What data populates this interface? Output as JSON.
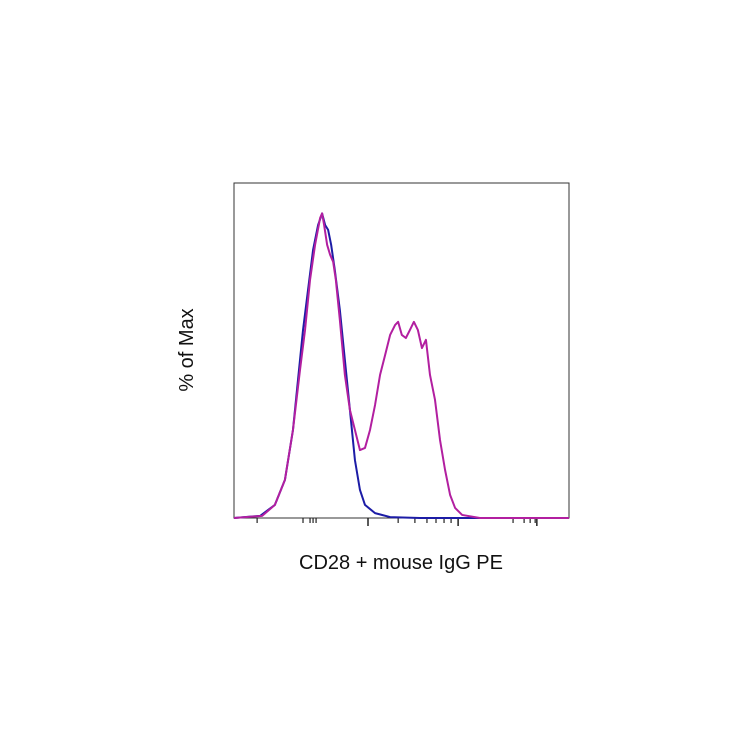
{
  "chart_data": {
    "type": "line",
    "x_label": "CD28 + mouse IgG PE",
    "y_label": "% of Max",
    "xlim": [
      0,
      100
    ],
    "ylim": [
      0,
      110
    ],
    "xticks": [
      40,
      66.9,
      90.4
    ],
    "xminorticks": [
      6.9,
      20.6,
      22.7,
      23.6,
      24.5,
      49,
      54,
      57.6,
      60.3,
      62.7,
      64.8,
      83.3,
      86.6,
      88.4,
      89.9
    ],
    "series": [
      {
        "color": "#1c1ca6",
        "x": [
          0,
          7.8,
          12.2,
          15.2,
          17.6,
          19.7,
          20.6,
          22.1,
          23.6,
          25.1,
          26.3,
          27.2,
          28.1,
          29.0,
          30.1,
          31.6,
          33.1,
          34.6,
          36.1,
          37.6,
          39.1,
          42.1,
          46.6,
          55.5,
          100
        ],
        "values": [
          0,
          0.7,
          4.3,
          12.5,
          28.9,
          51.9,
          61.7,
          74.9,
          88.0,
          96.2,
          100,
          96.2,
          94.6,
          89.7,
          81.4,
          68.3,
          51.9,
          35.5,
          19.0,
          9.2,
          4.3,
          1.6,
          0.3,
          0,
          0
        ]
      },
      {
        "color": "#b21fa0",
        "x": [
          0,
          8.4,
          12.2,
          15.2,
          17.6,
          19.7,
          21.2,
          22.7,
          24.2,
          25.7,
          26.3,
          26.9,
          27.8,
          28.7,
          29.6,
          30.4,
          31.6,
          33.1,
          34.6,
          36.1,
          37.6,
          39.1,
          40.6,
          42.1,
          43.6,
          45.1,
          46.6,
          48.1,
          49.0,
          50.1,
          51.3,
          52.5,
          53.7,
          54.9,
          56.1,
          57.3,
          58.5,
          60.0,
          61.5,
          63.0,
          64.5,
          66.0,
          68.1,
          73.4,
          100
        ],
        "values": [
          0,
          0.7,
          4.3,
          12.5,
          28.9,
          48.6,
          61.7,
          78.2,
          89.7,
          98.5,
          100,
          96.2,
          89.7,
          86.4,
          84.1,
          78.2,
          65.0,
          47.0,
          35.5,
          28.9,
          22.3,
          23.0,
          28.9,
          37.1,
          47.0,
          53.5,
          60.1,
          63.4,
          64.4,
          60.1,
          59.1,
          61.7,
          64.4,
          61.7,
          55.8,
          58.5,
          47.0,
          38.8,
          25.6,
          15.8,
          7.6,
          3.3,
          1.0,
          0,
          0
        ]
      }
    ]
  }
}
